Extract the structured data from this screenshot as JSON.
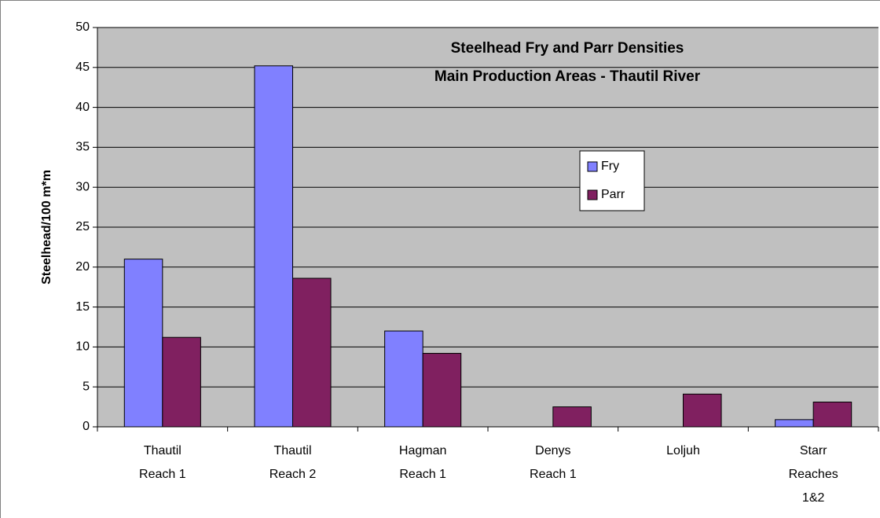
{
  "chart_data": {
    "type": "bar",
    "title": [
      "Steelhead Fry and Parr Densities",
      "Main Production Areas - Thautil River"
    ],
    "y_label": "Steelhead/100 m*m",
    "categories": [
      [
        "Thautil",
        "Reach 1"
      ],
      [
        "Thautil",
        "Reach 2"
      ],
      [
        "Hagman",
        "Reach 1"
      ],
      [
        "Denys",
        "Reach 1"
      ],
      [
        "Loljuh"
      ],
      [
        "Starr",
        "Reaches",
        "1&2"
      ]
    ],
    "series": [
      {
        "name": "Fry",
        "color": "#8080ff",
        "values": [
          21.0,
          45.2,
          12.0,
          0,
          0,
          0.9
        ]
      },
      {
        "name": "Parr",
        "color": "#802060",
        "values": [
          11.2,
          18.6,
          9.2,
          2.5,
          4.1,
          3.1
        ]
      }
    ],
    "ylim": [
      0,
      50
    ],
    "yticks": [
      0,
      5,
      10,
      15,
      20,
      25,
      30,
      35,
      40,
      45,
      50
    ],
    "grid": true,
    "plot_background": "#c0c0c0",
    "legend": "center-right"
  }
}
